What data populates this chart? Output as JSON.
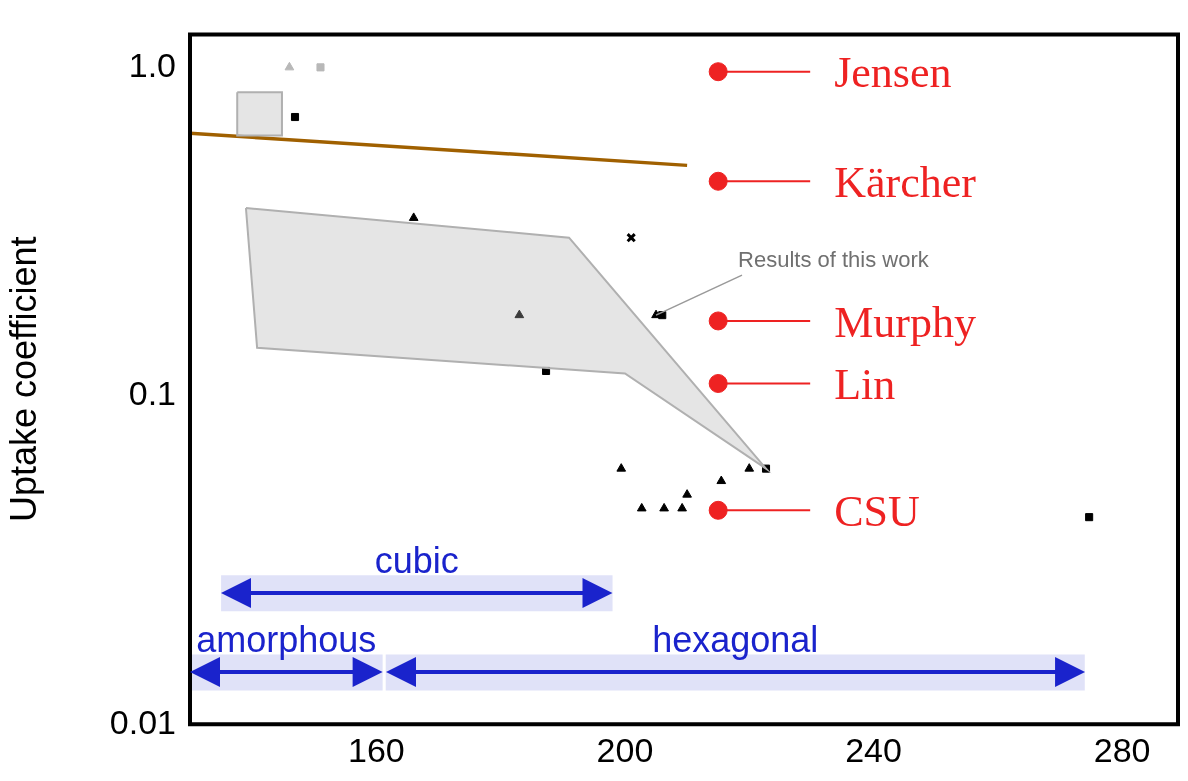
{
  "chart_data": {
    "type": "scatter",
    "ylabel": "Uptake coefficient",
    "log": "y",
    "grid": false,
    "legend": "right",
    "xlim": [
      130,
      289
    ],
    "xticks": [
      160,
      200,
      240,
      280
    ],
    "ylim": [
      0.01,
      1.26
    ],
    "yticks": [
      {
        "value": 1,
        "label": "1.0"
      },
      0.1,
      0.01
    ],
    "series": [
      {
        "type": "area",
        "color": "#b0b0b0",
        "x": [
          139,
          191,
          222.7,
          200,
          140.8,
          139
        ],
        "values": [
          0.373,
          0.303,
          0.06,
          0.117,
          0.14,
          0.373
        ]
      },
      {
        "type": "area",
        "color": "#b0b0b0",
        "x": [
          137.6,
          144.8,
          144.8,
          137.6,
          137.6
        ],
        "values": [
          0.84,
          0.84,
          0.62,
          0.62,
          0.84
        ]
      },
      {
        "type": "line",
        "color": "#a06000",
        "marker": "none",
        "x": [
          130,
          210
        ],
        "values": [
          0.63,
          0.503
        ]
      },
      {
        "color": "#000000",
        "marker": "triangle",
        "x": [
          166,
          183,
          205,
          199.4,
          202.7,
          206.3,
          209.2,
          210,
          215.5,
          220
        ],
        "values": [
          0.348,
          0.176,
          0.176,
          0.06,
          0.0454,
          0.0454,
          0.0454,
          0.05,
          0.055,
          0.06
        ]
      },
      {
        "color": "#000000",
        "marker": "square",
        "x": [
          146.9,
          187.3,
          206,
          222.7,
          274.7
        ],
        "values": [
          0.706,
          0.119,
          0.176,
          0.06,
          0.0427
        ]
      },
      {
        "color": "#000000",
        "marker": "cross",
        "x": [
          201
        ],
        "values": [
          0.303
        ]
      },
      {
        "color": "#b8b8b8",
        "marker": "triangle",
        "x": [
          146
        ],
        "values": [
          1.0
        ]
      },
      {
        "color": "#b8b8b8",
        "marker": "square",
        "x": [
          151
        ],
        "values": [
          1.0
        ]
      },
      {
        "name": "Jensen",
        "color": "#ee2222",
        "marker": "circle",
        "x": [
          215
        ],
        "values": [
          0.97
        ]
      },
      {
        "name": "Kärcher",
        "color": "#ee2222",
        "marker": "circle",
        "x": [
          215
        ],
        "values": [
          0.45
        ]
      },
      {
        "name": "Murphy",
        "color": "#ee2222",
        "marker": "circle",
        "x": [
          215
        ],
        "values": [
          0.169
        ]
      },
      {
        "name": "Lin",
        "color": "#ee2222",
        "marker": "circle",
        "x": [
          215
        ],
        "values": [
          0.109
        ]
      },
      {
        "name": "CSU",
        "color": "#ee2222",
        "marker": "circle",
        "x": [
          215
        ],
        "values": [
          0.0448
        ]
      }
    ],
    "bands": [
      {
        "axis": "x",
        "from": 135,
        "to": 198,
        "label": "cubic",
        "color": "#1a23cc"
      },
      {
        "axis": "x",
        "from": 130,
        "to": 161,
        "label": "amorphous",
        "color": "#1a23cc"
      },
      {
        "axis": "x",
        "from": 161.5,
        "to": 274,
        "label": "hexagonal",
        "color": "#1a23cc"
      }
    ],
    "annotations": [
      {
        "text": "Results of this work",
        "x": 205,
        "y": 0.176
      }
    ]
  }
}
